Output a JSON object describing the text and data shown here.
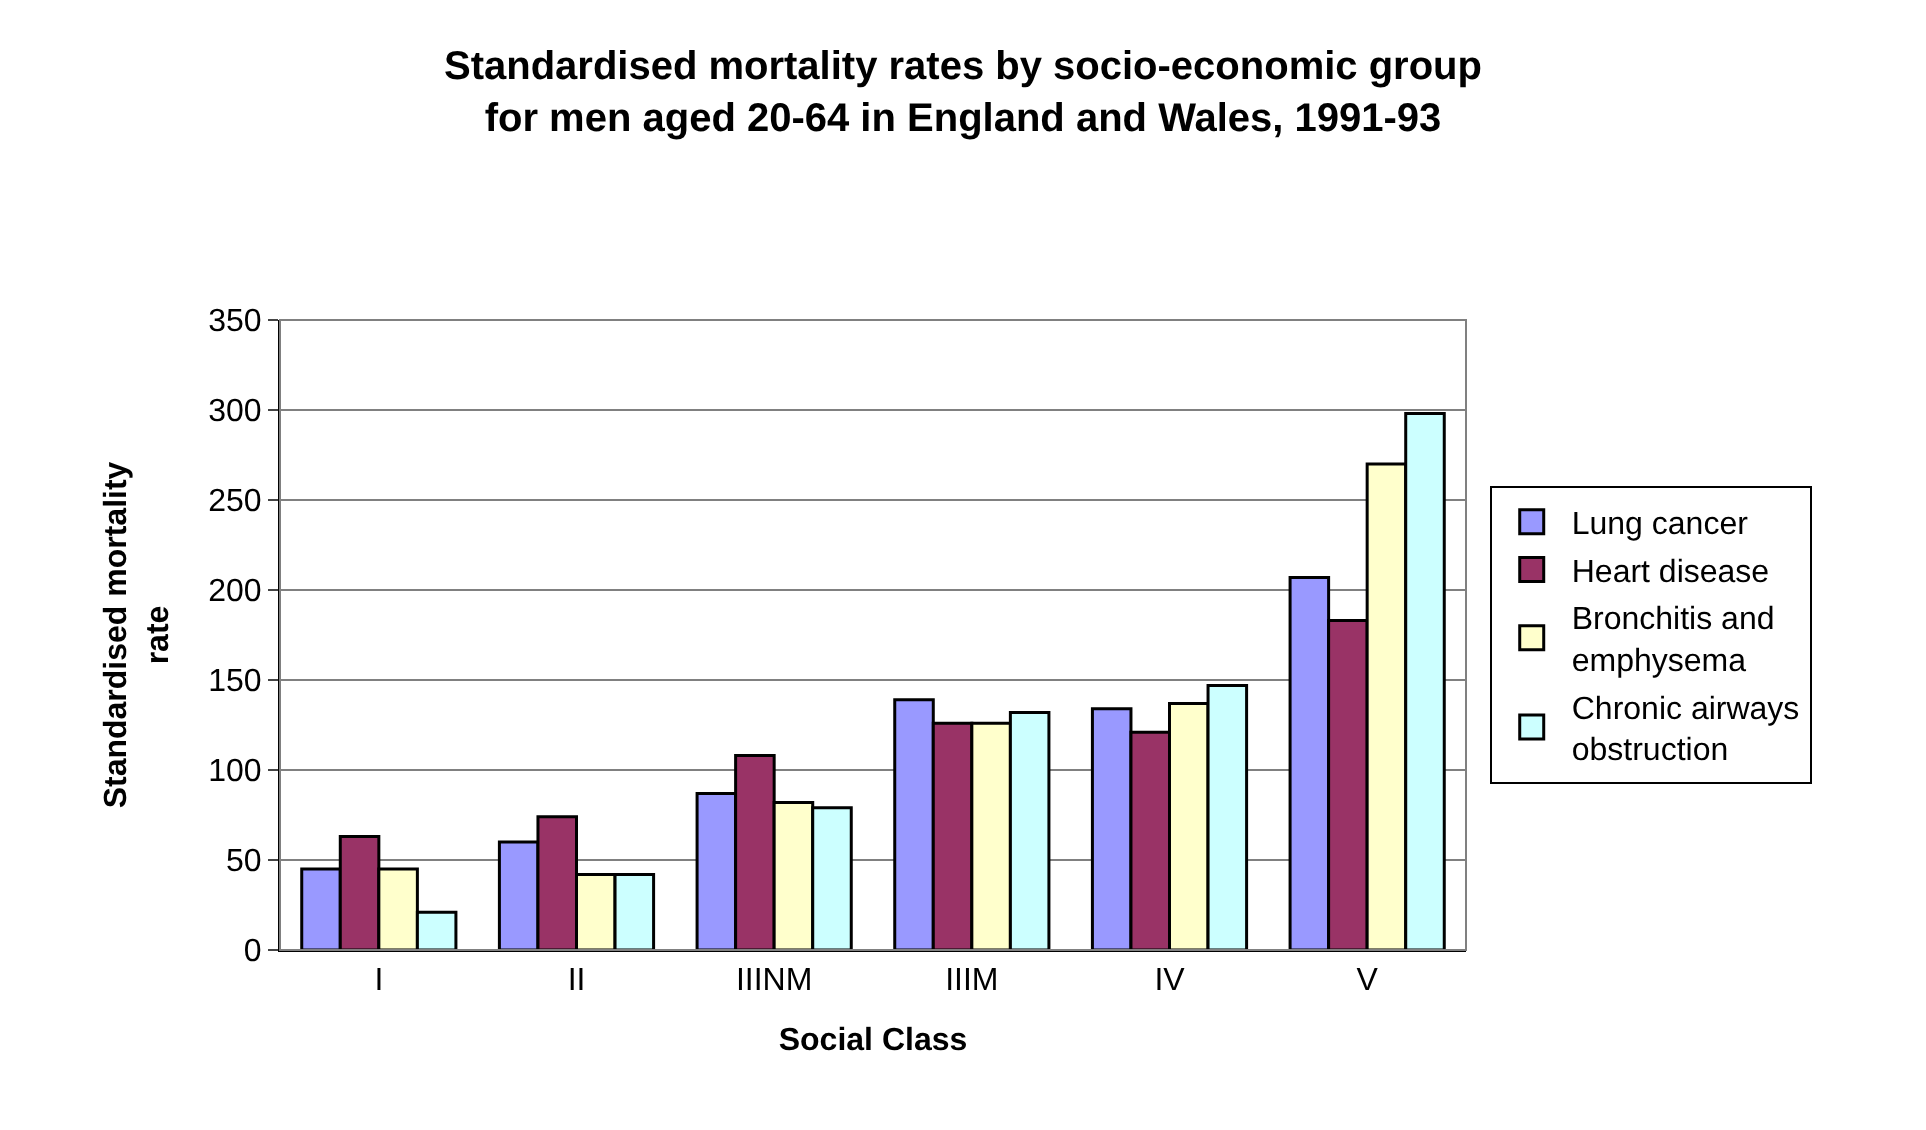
{
  "chart_data": {
    "type": "bar",
    "title": "Standardised mortality rates by socio-economic group\nfor men aged 20-64 in England and Wales, 1991-93",
    "xlabel": "Social Class",
    "ylabel": "Standardised mortality\nrate",
    "categories": [
      "I",
      "II",
      "IIINM",
      "IIIM",
      "IV",
      "V"
    ],
    "series": [
      {
        "name": "Lung cancer",
        "color": "#9999ff",
        "values": [
          45,
          60,
          87,
          139,
          134,
          207
        ]
      },
      {
        "name": "Heart disease",
        "color": "#993366",
        "values": [
          63,
          74,
          108,
          126,
          121,
          183
        ]
      },
      {
        "name": "Bronchitis and\nemphysema",
        "color": "#ffffcc",
        "values": [
          45,
          42,
          82,
          126,
          137,
          270
        ]
      },
      {
        "name": "Chronic airways\nobstruction",
        "color": "#ccffff",
        "values": [
          21,
          42,
          79,
          132,
          147,
          298
        ]
      }
    ],
    "ylim": [
      0,
      350
    ],
    "yticks": [
      0,
      50,
      100,
      150,
      200,
      250,
      300,
      350
    ],
    "grid": "y",
    "legend": "right"
  }
}
